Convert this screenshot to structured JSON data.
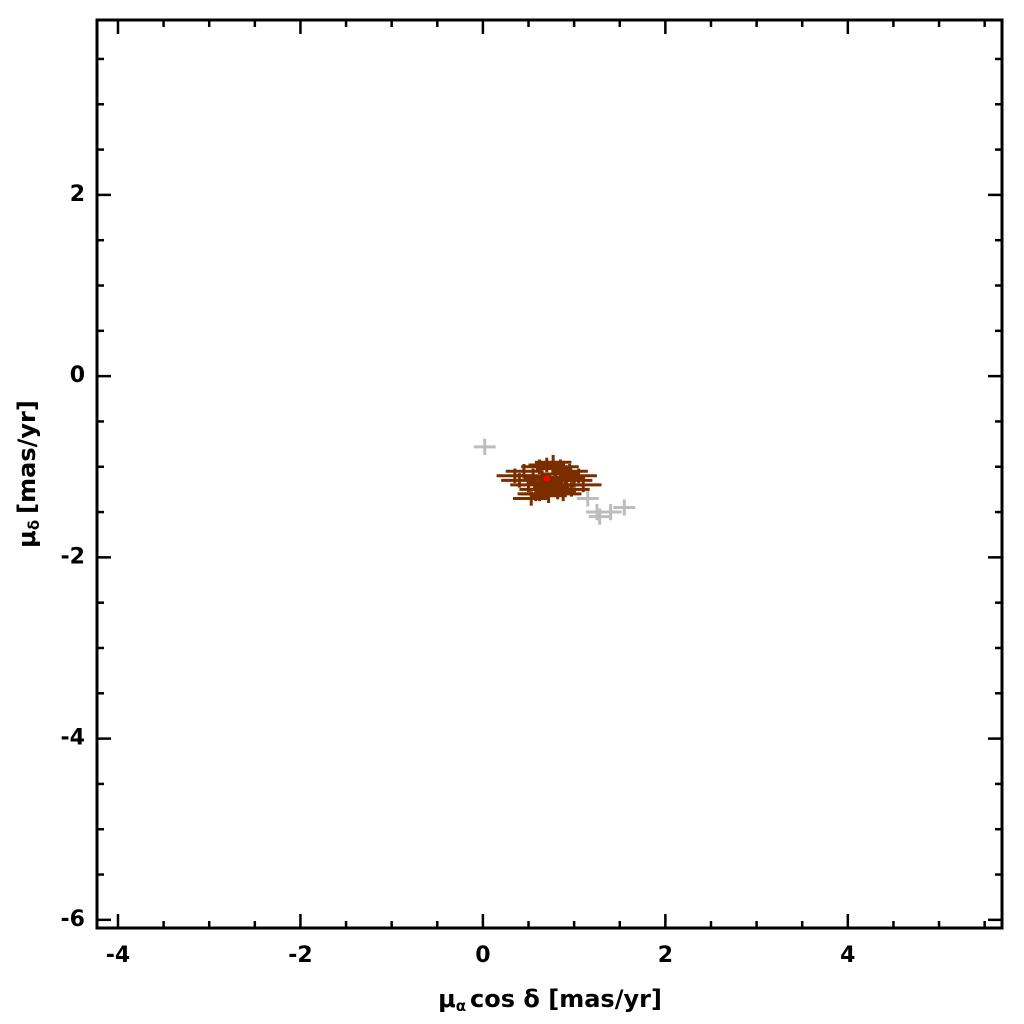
{
  "chart_data": {
    "type": "scatter",
    "xlabel": {
      "symbol": "μ",
      "sub": "α",
      "rest": "cos δ [mas/yr]"
    },
    "ylabel": {
      "symbol": "μ",
      "sub": "δ",
      "rest": "[mas/yr]"
    },
    "xlim": [
      -4.23,
      5.69
    ],
    "ylim": [
      -6.09,
      3.93
    ],
    "xticks": [
      -4,
      -2,
      0,
      2,
      4
    ],
    "yticks": [
      -6,
      -4,
      -2,
      0,
      2
    ],
    "xminorticks": [
      -3.5,
      -3,
      -2.5,
      -1.5,
      -1,
      -0.5,
      0.5,
      1,
      1.5,
      2.5,
      3,
      3.5,
      4.5,
      5,
      5.5
    ],
    "yminorticks": [
      -5.5,
      -5,
      -4.5,
      -3.5,
      -3,
      -2.5,
      -1.5,
      -1,
      -0.5,
      0.5,
      1,
      1.5,
      2.5,
      3,
      3.5
    ],
    "series": [
      {
        "color": "#bdbdbd",
        "xerr": 0.12,
        "yerr": 0.09,
        "x": [
          0.02,
          1.25,
          1.4,
          1.55,
          1.15,
          1.28
        ],
        "y": [
          -0.78,
          -1.5,
          -1.5,
          -1.45,
          -1.35,
          -1.55
        ]
      },
      {
        "color": "#7a2e00",
        "xerr": 0.2,
        "yerr": 0.08,
        "x": [
          0.45,
          0.55,
          0.62,
          0.7,
          0.78,
          0.85,
          0.92,
          1.0,
          0.5,
          0.6,
          0.68,
          0.75,
          0.82,
          0.9,
          0.97,
          1.05,
          0.4,
          0.58,
          0.72,
          0.88,
          0.65,
          0.8,
          0.95,
          0.53,
          0.77,
          0.35,
          1.1,
          0.7,
          0.85,
          0.62
        ],
        "y": [
          -1.05,
          -1.1,
          -1.0,
          -0.98,
          -1.02,
          -1.08,
          -1.12,
          -1.15,
          -1.2,
          -1.25,
          -1.18,
          -1.22,
          -1.28,
          -1.2,
          -1.25,
          -1.1,
          -1.15,
          -1.3,
          -1.32,
          -1.3,
          -1.12,
          -1.15,
          -1.05,
          -1.35,
          -0.95,
          -1.1,
          -1.2,
          -1.25,
          -1.0,
          -1.3
        ]
      },
      {
        "color": "#ff0000",
        "marker": "dot",
        "x": [
          0.7
        ],
        "y": [
          -1.13
        ]
      }
    ]
  }
}
